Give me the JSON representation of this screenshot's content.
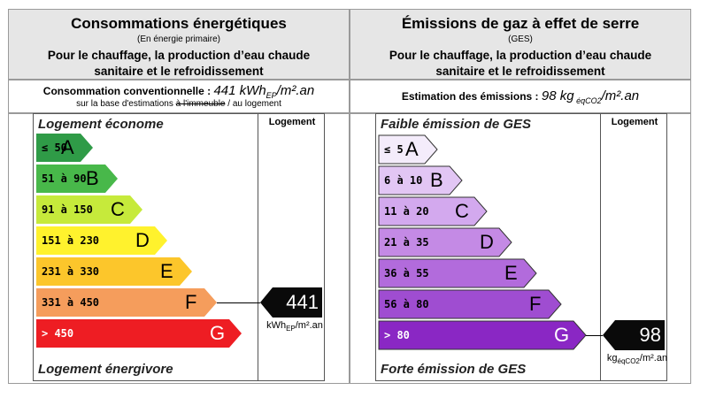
{
  "energy": {
    "title": "Consommations énergétiques",
    "subtitle": "(En énergie primaire)",
    "description_line1": "Pour le chauffage, la production d’eau chaude",
    "description_line2": "sanitaire et le refroidissement",
    "consumption_label": "Consommation conventionnelle : ",
    "consumption_value": "441 kWh",
    "consumption_sub": "EP",
    "consumption_unit_tail": "/m².an",
    "basis_prefix": "sur la base d'estimations ",
    "basis_strike": "à l'immeuble",
    "basis_suffix": " / au logement",
    "top_label": "Logement économe",
    "bottom_label": "Logement énergivore",
    "column_header": "Logement",
    "bars": [
      {
        "range": "≤ 50",
        "letter": "A",
        "color": "#2f9b47",
        "text_color": "#000000"
      },
      {
        "range": "51 à 90",
        "letter": "B",
        "color": "#48b84a",
        "text_color": "#000000"
      },
      {
        "range": "91 à 150",
        "letter": "C",
        "color": "#c6ea3b",
        "text_color": "#000000"
      },
      {
        "range": "151 à 230",
        "letter": "D",
        "color": "#fff22d",
        "text_color": "#000000"
      },
      {
        "range": "231 à 330",
        "letter": "E",
        "color": "#fcc62b",
        "text_color": "#000000"
      },
      {
        "range": "331 à 450",
        "letter": "F",
        "color": "#f59d5c",
        "text_color": "#000000"
      },
      {
        "range": "> 450",
        "letter": "G",
        "color": "#ee1d23",
        "text_color": "#ffffff"
      }
    ],
    "rating_index": 5,
    "marker_value": "441",
    "marker_unit_pre": "kWh",
    "marker_unit_sub": "EP",
    "marker_unit_post": "/m².an"
  },
  "ges": {
    "title": "Émissions de gaz à effet de serre",
    "subtitle": "(GES)",
    "description_line1": "Pour le chauffage, la production d’eau chaude",
    "description_line2": "sanitaire et le refroidissement",
    "estimate_label": "Estimation des émissions : ",
    "estimate_value": "98 kg",
    "estimate_sub": " éqCO2",
    "estimate_tail": "/m².an",
    "top_label": "Faible émission de GES",
    "bottom_label": "Forte émission de GES",
    "column_header": "Logement",
    "bars": [
      {
        "range": "≤ 5",
        "letter": "A",
        "color": "#f4ecfb",
        "text_color": "#000000"
      },
      {
        "range": "6 à 10",
        "letter": "B",
        "color": "#e2c6f4",
        "text_color": "#000000"
      },
      {
        "range": "11 à 20",
        "letter": "C",
        "color": "#d3a9ee",
        "text_color": "#000000"
      },
      {
        "range": "21 à 35",
        "letter": "D",
        "color": "#c48ae5",
        "text_color": "#000000"
      },
      {
        "range": "36 à 55",
        "letter": "E",
        "color": "#b26bdc",
        "text_color": "#000000"
      },
      {
        "range": "56 à 80",
        "letter": "F",
        "color": "#9f4dd1",
        "text_color": "#000000"
      },
      {
        "range": "> 80",
        "letter": "G",
        "color": "#8a27c4",
        "text_color": "#ffffff"
      }
    ],
    "rating_index": 6,
    "marker_value": "98",
    "marker_unit_pre": "kg",
    "marker_unit_sub": "éqCO2",
    "marker_unit_post": "/m².an"
  }
}
